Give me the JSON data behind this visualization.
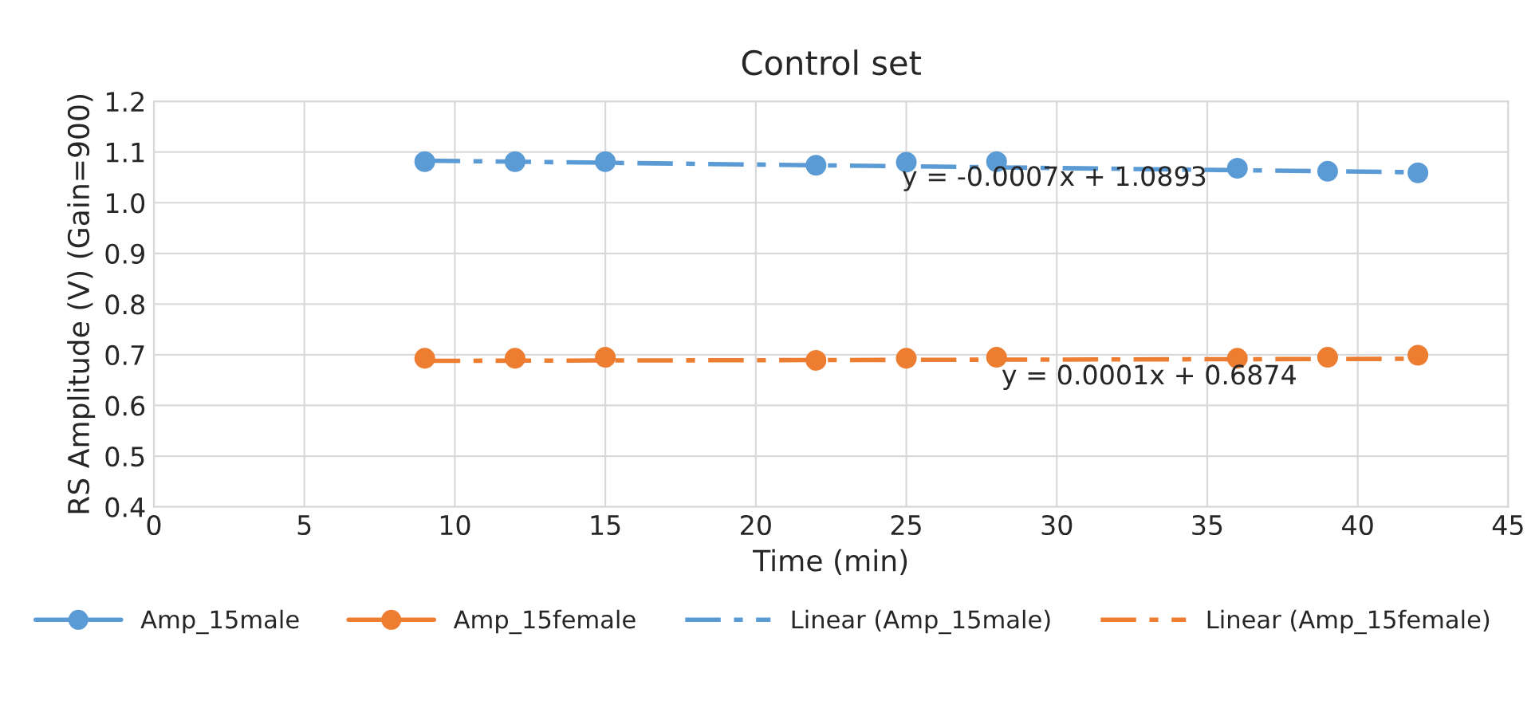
{
  "chart_data": {
    "type": "scatter",
    "title": "Control set",
    "xlabel": "Time (min)",
    "ylabel": "RS Amplitude (V) (Gain=900)",
    "xlim": [
      0,
      45
    ],
    "xticks": [
      0,
      5,
      10,
      15,
      20,
      25,
      30,
      35,
      40,
      45
    ],
    "ylim": [
      0.4,
      1.2
    ],
    "yticks": [
      {
        "value": 0.4,
        "label": "0.4"
      },
      {
        "value": 0.5,
        "label": "0.5"
      },
      {
        "value": 0.6,
        "label": "0.6"
      },
      {
        "value": 0.7,
        "label": "0.7"
      },
      {
        "value": 0.8,
        "label": "0.8"
      },
      {
        "value": 0.9,
        "label": "0.9"
      },
      {
        "value": 1.0,
        "label": "1.0"
      },
      {
        "value": 1.1,
        "label": "1.1"
      },
      {
        "value": 1.2,
        "label": "1.2"
      }
    ],
    "grid": true,
    "legend": "bottom",
    "marker": "circle",
    "series": [
      {
        "name": "Amp_15male",
        "color": "#5b9bd5",
        "x": [
          9,
          12,
          15,
          22,
          25,
          28,
          36,
          39,
          42
        ],
        "values": [
          1.081,
          1.081,
          1.081,
          1.074,
          1.08,
          1.081,
          1.068,
          1.062,
          1.059
        ]
      },
      {
        "name": "Amp_15female",
        "color": "#ed7d31",
        "x": [
          9,
          12,
          15,
          22,
          25,
          28,
          36,
          39,
          42
        ],
        "values": [
          0.693,
          0.693,
          0.695,
          0.689,
          0.693,
          0.695,
          0.693,
          0.695,
          0.699
        ]
      },
      {
        "name": "Linear (Amp_15male)",
        "type": "line",
        "line_style": "dashed",
        "marker": "none",
        "color": "#5b9bd5",
        "x": [
          9,
          42
        ],
        "values": [
          1.083,
          1.06
        ]
      },
      {
        "name": "Linear (Amp_15female)",
        "type": "line",
        "line_style": "dashed",
        "marker": "none",
        "color": "#ed7d31",
        "x": [
          9,
          42
        ],
        "values": [
          0.688,
          0.692
        ]
      }
    ],
    "annotations": [
      "y = -0.0007x + 1.0893",
      "y = 0.0001x + 0.6874"
    ]
  }
}
